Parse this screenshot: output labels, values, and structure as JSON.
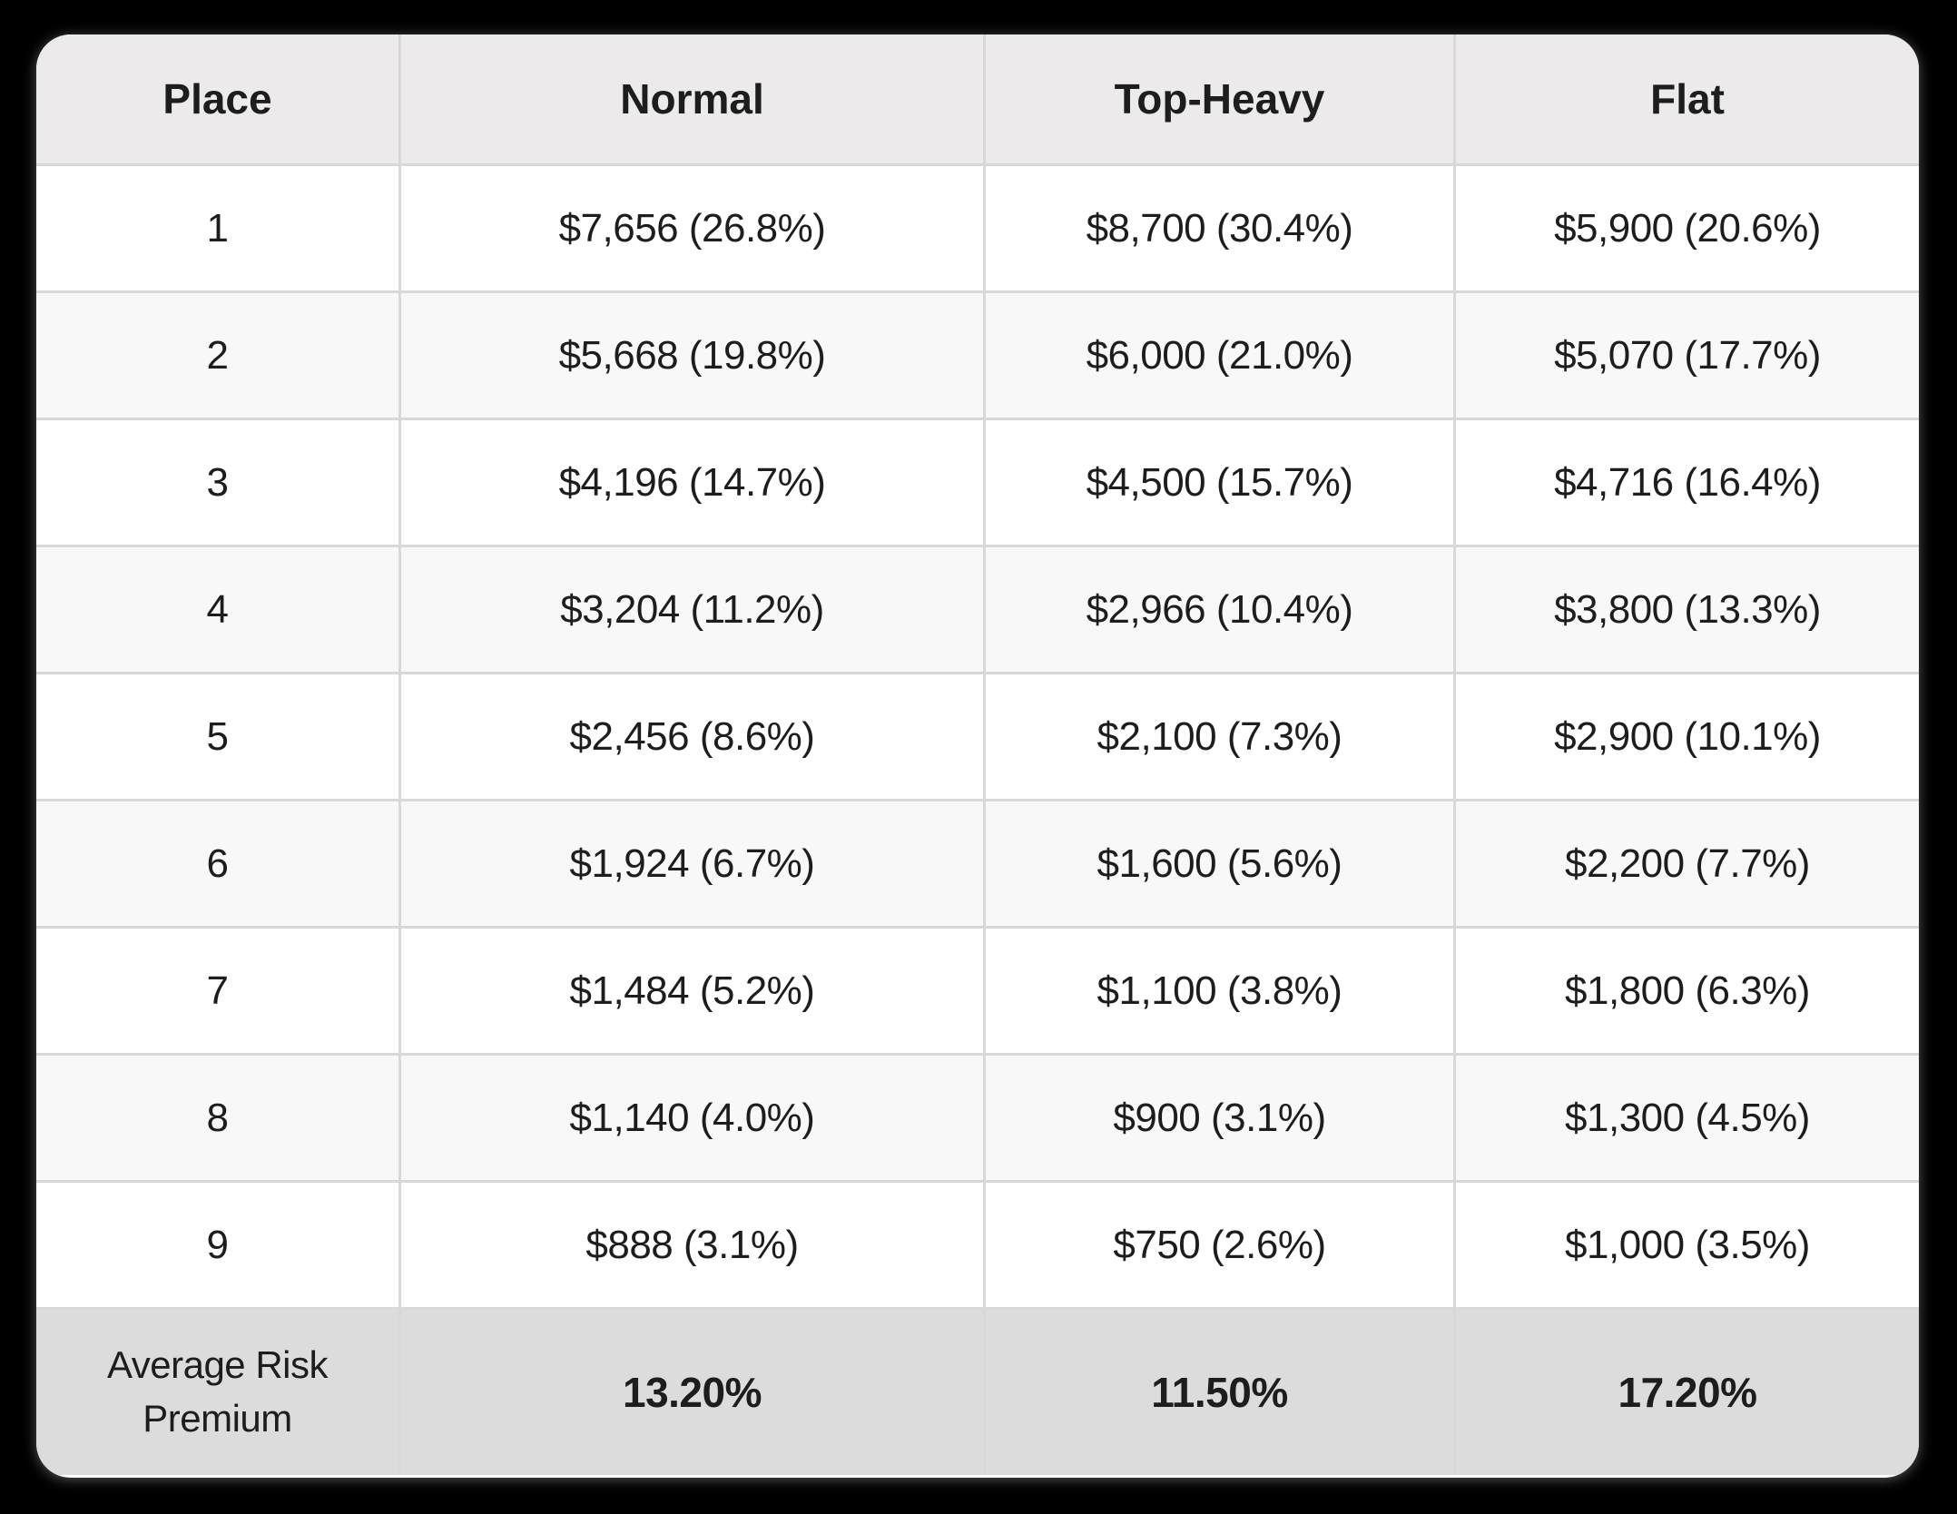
{
  "table": {
    "columns": [
      "Place",
      "Normal",
      "Top-Heavy",
      "Flat"
    ],
    "rows": [
      {
        "place": "1",
        "normal": "$7,656 (26.8%)",
        "top_heavy": "$8,700 (30.4%)",
        "flat": "$5,900 (20.6%)"
      },
      {
        "place": "2",
        "normal": "$5,668 (19.8%)",
        "top_heavy": "$6,000 (21.0%)",
        "flat": "$5,070 (17.7%)"
      },
      {
        "place": "3",
        "normal": "$4,196 (14.7%)",
        "top_heavy": "$4,500 (15.7%)",
        "flat": "$4,716 (16.4%)"
      },
      {
        "place": "4",
        "normal": "$3,204 (11.2%)",
        "top_heavy": "$2,966 (10.4%)",
        "flat": "$3,800 (13.3%)"
      },
      {
        "place": "5",
        "normal": "$2,456 (8.6%)",
        "top_heavy": "$2,100 (7.3%)",
        "flat": "$2,900 (10.1%)"
      },
      {
        "place": "6",
        "normal": "$1,924 (6.7%)",
        "top_heavy": "$1,600 (5.6%)",
        "flat": "$2,200 (7.7%)"
      },
      {
        "place": "7",
        "normal": "$1,484 (5.2%)",
        "top_heavy": "$1,100 (3.8%)",
        "flat": "$1,800 (6.3%)"
      },
      {
        "place": "8",
        "normal": "$1,140 (4.0%)",
        "top_heavy": "$900 (3.1%)",
        "flat": "$1,300 (4.5%)"
      },
      {
        "place": "9",
        "normal": "$888 (3.1%)",
        "top_heavy": "$750 (2.6%)",
        "flat": "$1,000 (3.5%)"
      }
    ],
    "footer": {
      "label": "Average Risk Premium",
      "normal": "13.20%",
      "top_heavy": "11.50%",
      "flat": "17.20%"
    }
  },
  "colors": {
    "page_background": "#000000",
    "card_background": "#ffffff",
    "header_background": "#eceaea",
    "alt_row_background": "#f9f8f8",
    "footer_background": "#dcdcdc",
    "border": "#d8d8d8",
    "text": "#1d1d1d"
  },
  "chart_data": {
    "type": "table",
    "title": "Payout structures by place with average risk premium",
    "columns": [
      "Place",
      "Normal",
      "Top-Heavy",
      "Flat"
    ],
    "places": [
      1,
      2,
      3,
      4,
      5,
      6,
      7,
      8,
      9
    ],
    "series": [
      {
        "name": "Normal",
        "payouts": [
          7656,
          5668,
          4196,
          3204,
          2456,
          1924,
          1484,
          1140,
          888
        ],
        "percents": [
          26.8,
          19.8,
          14.7,
          11.2,
          8.6,
          6.7,
          5.2,
          4.0,
          3.1
        ],
        "average_risk_premium_pct": 13.2
      },
      {
        "name": "Top-Heavy",
        "payouts": [
          8700,
          6000,
          4500,
          2966,
          2100,
          1600,
          1100,
          900,
          750
        ],
        "percents": [
          30.4,
          21.0,
          15.7,
          10.4,
          7.3,
          5.6,
          3.8,
          3.1,
          2.6
        ],
        "average_risk_premium_pct": 11.5
      },
      {
        "name": "Flat",
        "payouts": [
          5900,
          5070,
          4716,
          3800,
          2900,
          2200,
          1800,
          1300,
          1000
        ],
        "percents": [
          20.6,
          17.7,
          16.4,
          13.3,
          10.1,
          7.7,
          6.3,
          4.5,
          3.5
        ],
        "average_risk_premium_pct": 17.2
      }
    ],
    "footer_row_label": "Average Risk Premium"
  }
}
